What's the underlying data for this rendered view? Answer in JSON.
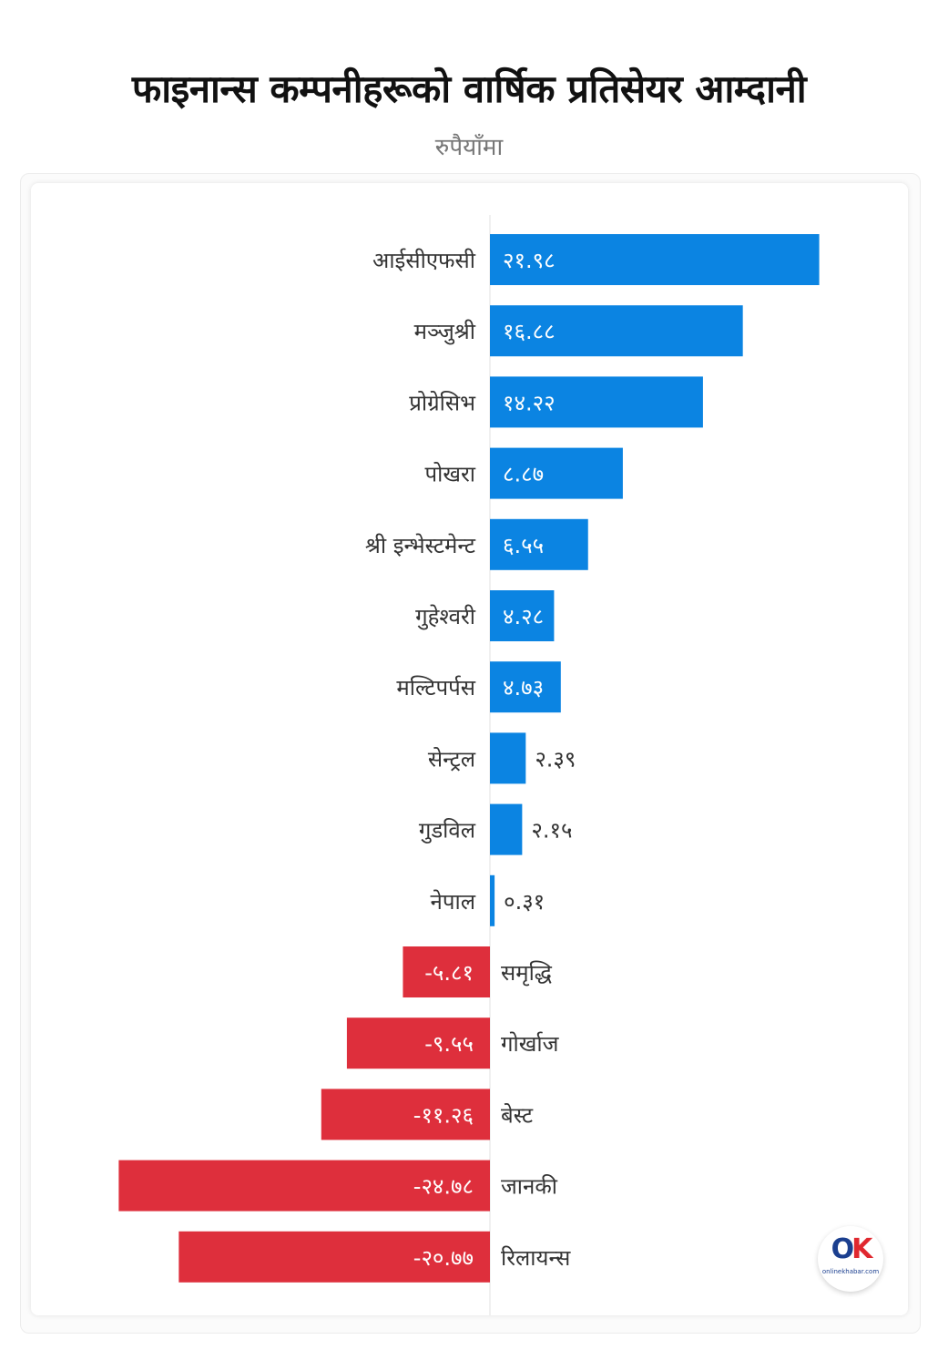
{
  "header": {
    "title": "फाइनान्स कम्पनीहरूको वार्षिक प्रतिसेयर आम्दानी",
    "subtitle": "रुपैयाँमा"
  },
  "logo": {
    "mark_o": "O",
    "mark_k": "K",
    "text": "onlinekhabar.com"
  },
  "colors": {
    "positive": "#0b84e2",
    "negative": "#de2f3c"
  },
  "chart_data": {
    "type": "bar",
    "orientation": "horizontal",
    "title": "फाइनान्स कम्पनीहरूको वार्षिक प्रतिसेयर आम्दानी",
    "subtitle": "रुपैयाँमा",
    "grid": false,
    "legend": "none",
    "categories": [
      "आईसीएफसी",
      "मञ्जुश्री",
      "प्रोग्रेसिभ",
      "पोखरा",
      "श्री इन्भेस्टमेन्ट",
      "गुहेश्वरी",
      "मल्टिपर्पस",
      "सेन्ट्रल",
      "गुडविल",
      "नेपाल",
      "समृद्धि",
      "गोर्खाज",
      "बेस्ट",
      "जानकी",
      "रिलायन्स"
    ],
    "values": [
      21.98,
      16.88,
      14.22,
      8.87,
      6.55,
      4.28,
      4.73,
      2.39,
      2.15,
      0.31,
      -5.81,
      -9.55,
      -11.26,
      -24.78,
      -20.77
    ],
    "value_labels": [
      "२१.९८",
      "१६.८८",
      "१४.२२",
      "८.८७",
      "६.५५",
      "४.२८",
      "४.७३",
      "२.३९",
      "२.१५",
      "०.३१",
      "-५.८१",
      "-९.५५",
      "-११.२६",
      "-२४.७८",
      "-२०.७७"
    ]
  }
}
